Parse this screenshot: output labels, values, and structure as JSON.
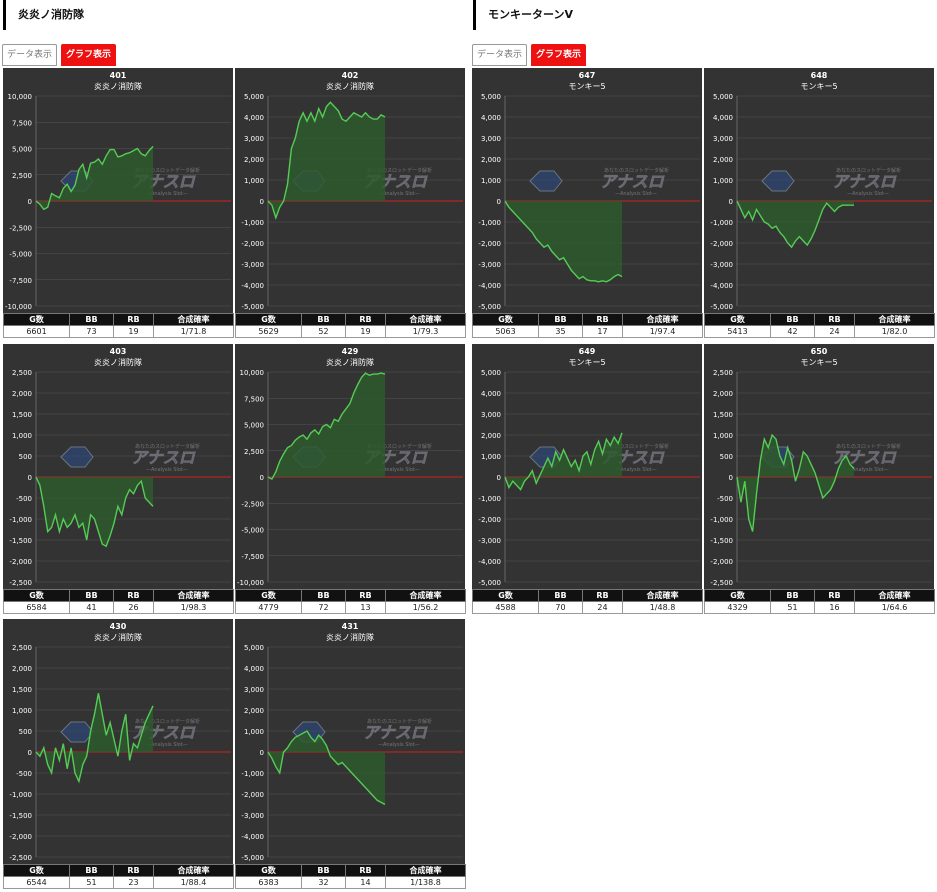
{
  "sections": [
    {
      "title": "炎炎ノ消防隊",
      "tabs": [
        "データ表示",
        "グラフ表示"
      ]
    },
    {
      "title": "モンキーターンV",
      "tabs": [
        "データ表示",
        "グラフ表示"
      ]
    }
  ],
  "columns": [
    "G数",
    "BB",
    "RB",
    "合成確率"
  ],
  "colors": {
    "line": "#55cc55",
    "fill": "#2e5a2e",
    "zero": "#cc2222",
    "bg": "#333333",
    "grid": "#555555"
  },
  "watermark": {
    "main": "アナスロ",
    "sub": "—Analysis Slot—",
    "top": "あなたのスロットデータ解析"
  },
  "chart_data": [
    {
      "type": "line",
      "title": "401",
      "subtitle": "炎炎ノ消防隊",
      "ylim": [
        -10000,
        10000
      ],
      "ticks": [
        10000,
        7500,
        5000,
        2500,
        0,
        -2500,
        -5000,
        -7500,
        -10000
      ],
      "x": [
        0,
        2,
        4,
        6,
        8,
        10,
        12,
        14,
        16,
        18,
        20,
        22,
        24,
        26,
        28,
        30,
        32,
        34,
        36,
        38,
        40,
        42,
        44,
        46,
        48,
        50,
        52,
        54,
        56,
        58,
        60
      ],
      "y": [
        0,
        -300,
        -800,
        -600,
        700,
        500,
        300,
        1200,
        1600,
        900,
        1500,
        3000,
        3500,
        2200,
        3600,
        3700,
        4000,
        3500,
        4300,
        4900,
        4900,
        4200,
        4300,
        4500,
        4600,
        4800,
        5000,
        4500,
        4300,
        4800,
        5200
      ],
      "table": {
        "g": "6601",
        "bb": "73",
        "rb": "19",
        "rate": "1/71.8"
      }
    },
    {
      "type": "line",
      "title": "402",
      "subtitle": "炎炎ノ消防隊",
      "ylim": [
        -5000,
        5000
      ],
      "ticks": [
        5000,
        4000,
        3000,
        2000,
        1000,
        0,
        -1000,
        -2000,
        -3000,
        -4000,
        -5000
      ],
      "x": [
        0,
        2,
        4,
        6,
        8,
        10,
        12,
        14,
        16,
        18,
        20,
        22,
        24,
        26,
        28,
        30,
        32,
        34,
        36,
        38,
        40,
        42,
        44,
        46,
        48,
        50,
        52,
        54,
        56,
        58,
        60
      ],
      "y": [
        0,
        -200,
        -800,
        -300,
        0,
        800,
        2500,
        3000,
        3800,
        4200,
        3800,
        4200,
        3800,
        4400,
        4000,
        4500,
        4700,
        4500,
        4300,
        3900,
        3800,
        4000,
        4200,
        4100,
        4000,
        4200,
        4000,
        3900,
        3900,
        4100,
        4000
      ],
      "table": {
        "g": "5629",
        "bb": "52",
        "rb": "19",
        "rate": "1/79.3"
      }
    },
    {
      "type": "line",
      "title": "647",
      "subtitle": "モンキー5",
      "ylim": [
        -5000,
        5000
      ],
      "ticks": [
        5000,
        4000,
        3000,
        2000,
        1000,
        0,
        -1000,
        -2000,
        -3000,
        -4000,
        -5000
      ],
      "x": [
        0,
        2,
        4,
        6,
        8,
        10,
        12,
        14,
        16,
        18,
        20,
        22,
        24,
        26,
        28,
        30,
        32,
        34,
        36,
        38,
        40,
        42,
        44,
        46,
        48,
        50,
        52,
        54,
        56,
        58,
        60
      ],
      "y": [
        0,
        -300,
        -500,
        -700,
        -900,
        -1100,
        -1300,
        -1500,
        -1800,
        -2000,
        -2200,
        -2100,
        -2400,
        -2600,
        -2800,
        -2700,
        -3000,
        -3300,
        -3500,
        -3700,
        -3600,
        -3750,
        -3800,
        -3800,
        -3850,
        -3800,
        -3850,
        -3750,
        -3600,
        -3500,
        -3600
      ],
      "table": {
        "g": "5063",
        "bb": "35",
        "rb": "17",
        "rate": "1/97.4"
      }
    },
    {
      "type": "line",
      "title": "648",
      "subtitle": "モンキー5",
      "ylim": [
        -5000,
        5000
      ],
      "ticks": [
        5000,
        4000,
        3000,
        2000,
        1000,
        0,
        -1000,
        -2000,
        -3000,
        -4000,
        -5000
      ],
      "x": [
        0,
        2,
        4,
        6,
        8,
        10,
        12,
        14,
        16,
        18,
        20,
        22,
        24,
        26,
        28,
        30,
        32,
        34,
        36,
        38,
        40,
        42,
        44,
        46,
        48,
        50,
        52,
        54,
        56,
        58,
        60
      ],
      "y": [
        0,
        -400,
        -800,
        -500,
        -900,
        -400,
        -700,
        -1000,
        -1100,
        -1300,
        -1200,
        -1500,
        -1700,
        -2000,
        -2200,
        -1900,
        -1700,
        -1900,
        -2100,
        -1800,
        -1400,
        -900,
        -400,
        -100,
        -300,
        -500,
        -300,
        -200,
        -200,
        -200,
        -200
      ],
      "table": {
        "g": "5413",
        "bb": "42",
        "rb": "24",
        "rate": "1/82.0"
      }
    },
    {
      "type": "line",
      "title": "403",
      "subtitle": "炎炎ノ消防隊",
      "ylim": [
        -2500,
        2500
      ],
      "ticks": [
        2500,
        2000,
        1500,
        1000,
        500,
        0,
        -500,
        -1000,
        -1500,
        -2000,
        -2500
      ],
      "x": [
        0,
        2,
        4,
        6,
        8,
        10,
        12,
        14,
        16,
        18,
        20,
        22,
        24,
        26,
        28,
        30,
        32,
        34,
        36,
        38,
        40,
        42,
        44,
        46,
        48,
        50,
        52,
        54,
        56,
        58,
        60
      ],
      "y": [
        0,
        -200,
        -700,
        -1300,
        -1200,
        -900,
        -1300,
        -1000,
        -1200,
        -1100,
        -900,
        -1200,
        -1100,
        -1500,
        -900,
        -1000,
        -1300,
        -1600,
        -1650,
        -1400,
        -1100,
        -700,
        -900,
        -500,
        -300,
        -400,
        -200,
        -100,
        -500,
        -600,
        -700
      ],
      "table": {
        "g": "6584",
        "bb": "41",
        "rb": "26",
        "rate": "1/98.3"
      }
    },
    {
      "type": "line",
      "title": "429",
      "subtitle": "炎炎ノ消防隊",
      "ylim": [
        -10000,
        10000
      ],
      "ticks": [
        10000,
        7500,
        5000,
        2500,
        0,
        -2500,
        -5000,
        -7500,
        -10000
      ],
      "x": [
        0,
        2,
        4,
        6,
        8,
        10,
        12,
        14,
        16,
        18,
        20,
        22,
        24,
        26,
        28,
        30,
        32,
        34,
        36,
        38,
        40,
        42,
        44,
        46,
        48,
        50,
        52,
        54,
        56,
        58,
        60
      ],
      "y": [
        0,
        -200,
        500,
        1500,
        2200,
        2800,
        3000,
        3500,
        3800,
        4000,
        3600,
        4200,
        4500,
        4100,
        4800,
        5000,
        4700,
        5500,
        5300,
        6000,
        6500,
        7000,
        8000,
        8800,
        9500,
        9900,
        9700,
        9800,
        9800,
        9900,
        9800
      ],
      "table": {
        "g": "4779",
        "bb": "72",
        "rb": "13",
        "rate": "1/56.2"
      }
    },
    {
      "type": "line",
      "title": "649",
      "subtitle": "モンキー5",
      "ylim": [
        -5000,
        5000
      ],
      "ticks": [
        5000,
        4000,
        3000,
        2000,
        1000,
        0,
        -1000,
        -2000,
        -3000,
        -4000,
        -5000
      ],
      "x": [
        0,
        2,
        4,
        6,
        8,
        10,
        12,
        14,
        16,
        18,
        20,
        22,
        24,
        26,
        28,
        30,
        32,
        34,
        36,
        38,
        40,
        42,
        44,
        46,
        48,
        50,
        52,
        54,
        56,
        58,
        60
      ],
      "y": [
        0,
        -500,
        -200,
        -400,
        -600,
        -200,
        0,
        300,
        -300,
        100,
        500,
        900,
        500,
        1200,
        800,
        1300,
        900,
        500,
        800,
        300,
        1000,
        1200,
        600,
        1300,
        1700,
        1100,
        1800,
        1500,
        1900,
        1600,
        2100
      ],
      "table": {
        "g": "4588",
        "bb": "70",
        "rb": "24",
        "rate": "1/48.8"
      }
    },
    {
      "type": "line",
      "title": "650",
      "subtitle": "モンキー5",
      "ylim": [
        -2500,
        2500
      ],
      "ticks": [
        2500,
        2000,
        1500,
        1000,
        500,
        0,
        -500,
        -1000,
        -1500,
        -2000,
        -2500
      ],
      "x": [
        0,
        2,
        4,
        6,
        8,
        10,
        12,
        14,
        16,
        18,
        20,
        22,
        24,
        26,
        28,
        30,
        32,
        34,
        36,
        38,
        40,
        42,
        44,
        46,
        48,
        50,
        52,
        54,
        56,
        58,
        60
      ],
      "y": [
        0,
        -600,
        -100,
        -1000,
        -1300,
        -400,
        400,
        900,
        700,
        1000,
        900,
        500,
        300,
        700,
        400,
        -100,
        200,
        600,
        500,
        300,
        100,
        -200,
        -500,
        -400,
        -300,
        -100,
        200,
        400,
        500,
        300,
        200
      ],
      "table": {
        "g": "4329",
        "bb": "51",
        "rb": "16",
        "rate": "1/64.6"
      }
    },
    {
      "type": "line",
      "title": "430",
      "subtitle": "炎炎ノ消防隊",
      "ylim": [
        -2500,
        2500
      ],
      "ticks": [
        2500,
        2000,
        1500,
        1000,
        500,
        0,
        -500,
        -1000,
        -1500,
        -2000,
        -2500
      ],
      "x": [
        0,
        2,
        4,
        6,
        8,
        10,
        12,
        14,
        16,
        18,
        20,
        22,
        24,
        26,
        28,
        30,
        32,
        34,
        36,
        38,
        40,
        42,
        44,
        46,
        48,
        50,
        52,
        54,
        56,
        58,
        60
      ],
      "y": [
        0,
        -100,
        100,
        -300,
        -500,
        100,
        -200,
        200,
        -400,
        100,
        -500,
        -700,
        -300,
        -100,
        500,
        900,
        1400,
        900,
        400,
        700,
        300,
        -100,
        500,
        900,
        -200,
        200,
        100,
        400,
        700,
        900,
        1100
      ],
      "table": {
        "g": "6544",
        "bb": "51",
        "rb": "23",
        "rate": "1/88.4"
      }
    },
    {
      "type": "line",
      "title": "431",
      "subtitle": "炎炎ノ消防隊",
      "ylim": [
        -5000,
        5000
      ],
      "ticks": [
        5000,
        4000,
        3000,
        2000,
        1000,
        0,
        -1000,
        -2000,
        -3000,
        -4000,
        -5000
      ],
      "x": [
        0,
        2,
        4,
        6,
        8,
        10,
        12,
        14,
        16,
        18,
        20,
        22,
        24,
        26,
        28,
        30,
        32,
        34,
        36,
        38,
        40,
        42,
        44,
        46,
        48,
        50,
        52,
        54,
        56,
        58,
        60
      ],
      "y": [
        0,
        -300,
        -700,
        -1000,
        0,
        200,
        500,
        700,
        800,
        900,
        1000,
        700,
        500,
        800,
        600,
        300,
        -200,
        -400,
        -600,
        -500,
        -700,
        -900,
        -1100,
        -1300,
        -1500,
        -1700,
        -1900,
        -2100,
        -2300,
        -2400,
        -2500
      ],
      "table": {
        "g": "6383",
        "bb": "32",
        "rb": "14",
        "rate": "1/138.8"
      }
    }
  ]
}
